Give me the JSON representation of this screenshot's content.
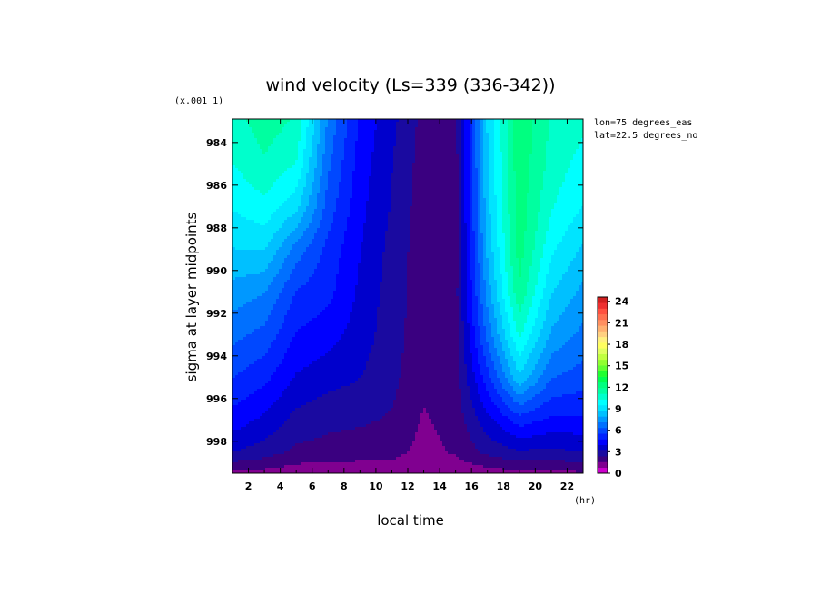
{
  "chart_data": {
    "type": "heatmap",
    "title": "wind velocity (Ls=339 (336-342))",
    "xlabel": "local time",
    "ylabel": "sigma at layer midpoints",
    "x_unit": "(hr)",
    "y_scale_note": "(x.001 1)",
    "annotations": [
      "lon=75 degrees_eas",
      "lat=22.5 degrees_no"
    ],
    "xlim": [
      1,
      23
    ],
    "ylim": [
      999.5,
      982.9
    ],
    "x_ticks": [
      2,
      4,
      6,
      8,
      10,
      12,
      14,
      16,
      18,
      20,
      22
    ],
    "x_tick_labels": [
      "2",
      "4",
      "6",
      "8",
      "10",
      "12",
      "14",
      "16",
      "18",
      "20",
      "22"
    ],
    "y_ticks": [
      984,
      986,
      988,
      990,
      992,
      994,
      996,
      998
    ],
    "y_tick_labels": [
      "984",
      "986",
      "988",
      "990",
      "992",
      "994",
      "996",
      "998"
    ],
    "x": [
      1,
      3,
      5,
      7,
      9,
      11,
      13,
      15,
      17,
      19,
      21,
      23
    ],
    "y": [
      983,
      985,
      987,
      989,
      991,
      993,
      995,
      997,
      998.5,
      999.5
    ],
    "z": [
      [
        10.8,
        11.5,
        11.0,
        7.0,
        4.6,
        3.4,
        2.1,
        2.1,
        8.8,
        12.5,
        11.0,
        10.5
      ],
      [
        10.3,
        11.0,
        10.3,
        6.5,
        4.4,
        3.2,
        2.0,
        2.0,
        8.7,
        12.5,
        10.8,
        10.0
      ],
      [
        9.6,
        10.1,
        9.0,
        6.0,
        4.2,
        3.1,
        1.9,
        2.0,
        8.5,
        12.4,
        10.4,
        9.5
      ],
      [
        8.7,
        8.8,
        6.8,
        5.3,
        4.0,
        2.9,
        1.9,
        2.0,
        8.1,
        12.3,
        9.7,
        8.6
      ],
      [
        7.6,
        7.2,
        5.5,
        5.0,
        3.8,
        2.8,
        1.9,
        2.1,
        7.5,
        11.8,
        8.8,
        7.7
      ],
      [
        6.6,
        6.1,
        4.7,
        4.3,
        3.6,
        2.7,
        1.9,
        2.1,
        6.6,
        10.5,
        7.8,
        6.9
      ],
      [
        5.6,
        5.0,
        3.9,
        3.5,
        3.2,
        2.6,
        1.8,
        2.0,
        5.3,
        8.6,
        6.4,
        6.0
      ],
      [
        4.4,
        3.8,
        2.9,
        2.6,
        2.5,
        2.3,
        1.5,
        1.9,
        3.7,
        5.2,
        4.6,
        4.6
      ],
      [
        3.2,
        2.8,
        2.2,
        2.1,
        2.0,
        1.9,
        1.3,
        1.7,
        2.6,
        3.1,
        3.0,
        3.2
      ],
      [
        1.4,
        1.3,
        1.1,
        1.1,
        1.0,
        1.0,
        0.8,
        1.0,
        1.2,
        1.4,
        1.4,
        1.5
      ]
    ],
    "colorbar": {
      "min": 0,
      "max": 24.6,
      "ticks": [
        0,
        3,
        6,
        9,
        12,
        15,
        18,
        21,
        24
      ],
      "tick_labels": [
        "0",
        "3",
        "6",
        "9",
        "12",
        "15",
        "18",
        "21",
        "24"
      ],
      "colors": [
        "#cc00cc",
        "#800090",
        "#3a0080",
        "#1a0aa0",
        "#0000cc",
        "#0000ff",
        "#0022ff",
        "#0048ff",
        "#0070ff",
        "#0098ff",
        "#00c0ff",
        "#00e4ff",
        "#00ffff",
        "#00ffcc",
        "#00ffa0",
        "#00ff80",
        "#00ff50",
        "#20ff30",
        "#60ff30",
        "#90ff30",
        "#c0ff40",
        "#e0ff60",
        "#ffff60",
        "#fff080",
        "#ffd080",
        "#ffb070",
        "#ff9060",
        "#ff7050",
        "#ff5040",
        "#ee3030",
        "#d02020"
      ]
    }
  }
}
